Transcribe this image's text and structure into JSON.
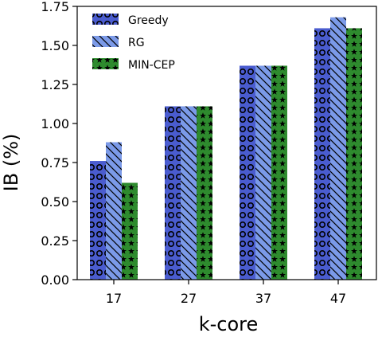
{
  "chart_data": {
    "type": "bar",
    "title": "",
    "xlabel": "k-core",
    "ylabel": "IB (%)",
    "categories": [
      "17",
      "27",
      "37",
      "47"
    ],
    "ylim": [
      0,
      1.75
    ],
    "yticks": [
      "0.00",
      "0.25",
      "0.50",
      "0.75",
      "1.00",
      "1.25",
      "1.50",
      "1.75"
    ],
    "legend_position": "top-left",
    "grid": false,
    "series": [
      {
        "name": "Greedy",
        "color": "#4a5ccf",
        "pattern": "circles",
        "values": [
          0.76,
          1.11,
          1.37,
          1.61
        ]
      },
      {
        "name": "RG",
        "color": "#7b9ae8",
        "pattern": "diagonal-hatch",
        "values": [
          0.88,
          1.11,
          1.37,
          1.68
        ]
      },
      {
        "name": "MIN-CEP",
        "color": "#2e8b2e",
        "pattern": "stars",
        "values": [
          0.62,
          1.11,
          1.37,
          1.61
        ]
      }
    ]
  }
}
